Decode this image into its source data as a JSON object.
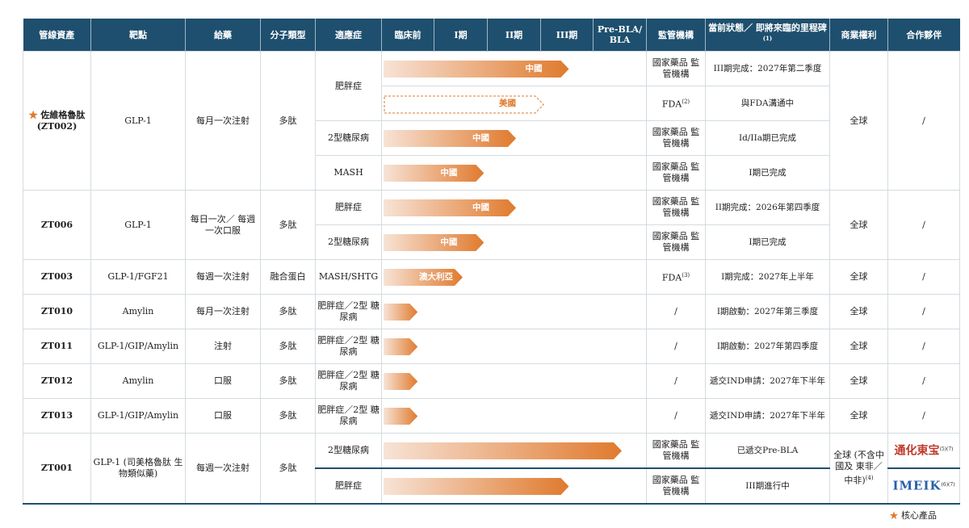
{
  "headers": {
    "asset": "管線資產",
    "target": "靶點",
    "dosing": "給藥",
    "modality": "分子類型",
    "indication": "適應症",
    "preclinical": "臨床前",
    "phase1": "I期",
    "phase2": "II期",
    "phase3": "III期",
    "prebla": "Pre-BLA/ BLA",
    "regulator": "監管機構",
    "status": "當前狀態／ 即將來臨的里程碑",
    "status_note": "(1)",
    "rights": "商業權利",
    "partner": "合作夥伴"
  },
  "rows": [
    {
      "asset": "佐維格魯肽 (ZT002)",
      "target": "GLP-1",
      "dosing": "每月一次注射",
      "modality": "多肽",
      "indication": "肥胖症",
      "stage": 3.5,
      "region": "中國",
      "regulator": "國家藥品 監管機構",
      "status": "III期完成：2027年第二季度",
      "rights": "全球",
      "partner": "/"
    },
    {
      "indication": "肥胖症",
      "stage": 3.0,
      "region": "美國",
      "dashed": true,
      "regulator": "FDA",
      "regulator_note": "(2)",
      "status": "與FDA溝通中"
    },
    {
      "indication": "2型糖尿病",
      "stage": 2.5,
      "region": "中國",
      "regulator": "國家藥品 監管機構",
      "status": "Id/IIa期已完成"
    },
    {
      "indication": "MASH",
      "stage": 1.9,
      "region": "中國",
      "regulator": "國家藥品 監管機構",
      "status": "I期已完成"
    },
    {
      "asset": "ZT006",
      "target": "GLP-1",
      "dosing": "每日一次／ 每週一次口服",
      "modality": "多肽",
      "indication": "肥胖症",
      "stage": 2.5,
      "region": "中國",
      "regulator": "國家藥品 監管機構",
      "status": "II期完成：2026年第四季度",
      "rights": "全球",
      "partner": "/"
    },
    {
      "indication": "2型糖尿病",
      "stage": 1.9,
      "region": "中國",
      "regulator": "國家藥品 監管機構",
      "status": "I期已完成"
    },
    {
      "asset": "ZT003",
      "target": "GLP-1/FGF21",
      "dosing": "每週一次注射",
      "modality": "融合蛋白",
      "indication": "MASH/SHTG",
      "stage": 1.5,
      "region": "澳大利亞",
      "regulator": "FDA",
      "regulator_note": "(3)",
      "status": "I期完成：2027年上半年",
      "rights": "全球",
      "partner": "/"
    },
    {
      "asset": "ZT010",
      "target": "Amylin",
      "dosing": "每月一次注射",
      "modality": "多肽",
      "indication": "肥胖症／2型 糖尿病",
      "stage": 0.65,
      "region": "",
      "regulator": "/",
      "status": "I期啟動：2027年第三季度",
      "rights": "全球",
      "partner": "/"
    },
    {
      "asset": "ZT011",
      "target": "GLP-1/GIP/Amylin",
      "dosing": "注射",
      "modality": "多肽",
      "indication": "肥胖症／2型 糖尿病",
      "stage": 0.65,
      "region": "",
      "regulator": "/",
      "status": "I期啟動：2027年第四季度",
      "rights": "全球",
      "partner": "/"
    },
    {
      "asset": "ZT012",
      "target": "Amylin",
      "dosing": "口服",
      "modality": "多肽",
      "indication": "肥胖症／2型 糖尿病",
      "stage": 0.65,
      "region": "",
      "regulator": "/",
      "status": "遞交IND申請：2027年下半年",
      "rights": "全球",
      "partner": "/"
    },
    {
      "asset": "ZT013",
      "target": "GLP-1/GIP/Amylin",
      "dosing": "口服",
      "modality": "多肽",
      "indication": "肥胖症／2型 糖尿病",
      "stage": 0.65,
      "region": "",
      "regulator": "/",
      "status": "遞交IND申請：2027年下半年",
      "rights": "全球",
      "partner": "/"
    },
    {
      "asset": "ZT001",
      "target": "GLP-1 (司美格魯肽 生物類似藥)",
      "dosing": "每週一次注射",
      "modality": "多肽",
      "indication": "2型糖尿病",
      "stage": 4.5,
      "region": "",
      "regulator": "國家藥品 監管機構",
      "status": "已遞交Pre-BLA",
      "rights": "全球 (不含中國及 東非／中非)",
      "rights_note": "(4)",
      "partner": "通化東宝",
      "partner_note": "(5)(7)"
    },
    {
      "indication": "肥胖症",
      "stage": 3.5,
      "region": "",
      "regulator": "國家藥品 監管機構",
      "status": "III期進行中",
      "partner": "IMEIK",
      "partner_note": "(6)(7)"
    }
  ],
  "legend": {
    "text": "核心產品"
  },
  "colors": {
    "header": "#1e4f6e",
    "bar_start": "#f7e3d6",
    "bar_end": "#e07a2e"
  }
}
